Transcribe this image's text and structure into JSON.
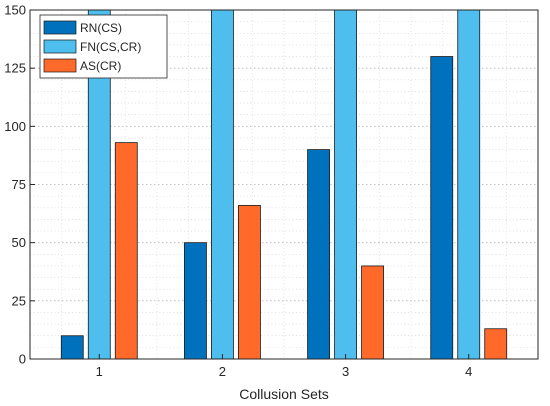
{
  "chart_data": {
    "type": "bar",
    "categories": [
      "1",
      "2",
      "3",
      "4"
    ],
    "series": [
      {
        "name": "RN(CS)",
        "values": [
          10,
          50,
          90,
          130
        ],
        "color": "#0072BD"
      },
      {
        "name": "FN(CS,CR)",
        "values": [
          150,
          150,
          150,
          150
        ],
        "color": "#4DBEEE"
      },
      {
        "name": "AS(CR)",
        "values": [
          93,
          66,
          40,
          13
        ],
        "color": "#FF6929"
      }
    ],
    "title": "",
    "xlabel": "Collusion Sets",
    "ylabel": "",
    "ylim": [
      0,
      150
    ],
    "yticks": [
      0,
      25,
      50,
      75,
      100,
      125,
      150
    ],
    "grid": true,
    "legend_position": "top-left"
  }
}
